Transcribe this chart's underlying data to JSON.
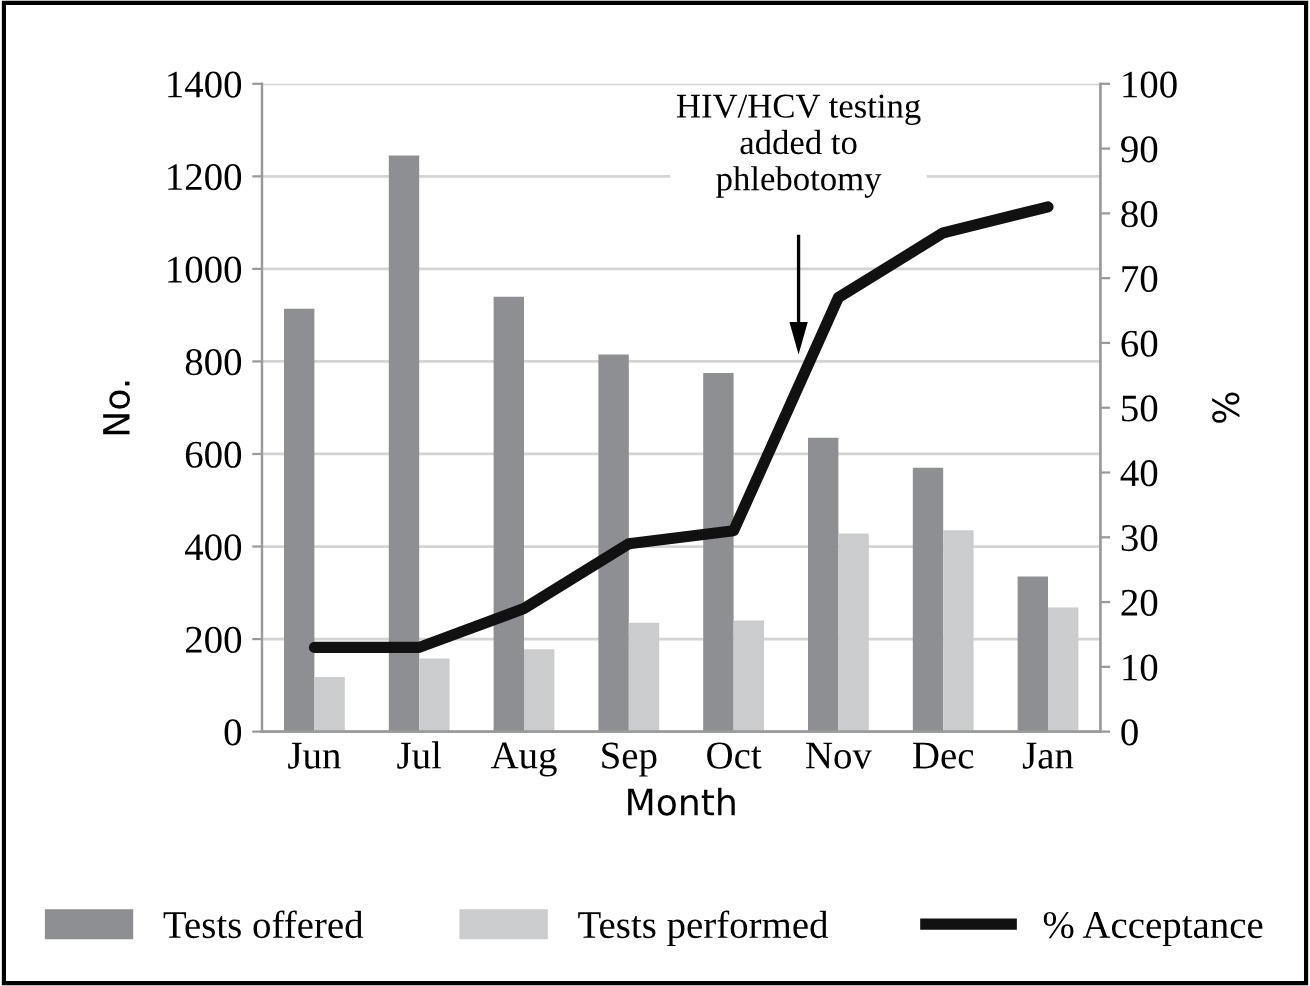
{
  "chart_data": {
    "type": "bar",
    "xlabel": "Month",
    "ylabel": "No.",
    "y2label": "%",
    "categories": [
      "Jun",
      "Jul",
      "Aug",
      "Sep",
      "Oct",
      "Nov",
      "Dec",
      "Jan"
    ],
    "series": [
      {
        "name": "Tests offered",
        "color": "#8e8f92",
        "values": [
          914,
          1245,
          940,
          815,
          775,
          635,
          570,
          335
        ]
      },
      {
        "name": "Tests performed",
        "color": "#cbcccd",
        "values": [
          118,
          158,
          178,
          235,
          240,
          428,
          435,
          268
        ]
      },
      {
        "name": "% Acceptance",
        "type": "line",
        "axis": "y2",
        "color": "#111111",
        "values": [
          13,
          13,
          19,
          29,
          31,
          67,
          77,
          81
        ]
      }
    ],
    "ylim": [
      0,
      1400
    ],
    "yticks": [
      0,
      200,
      400,
      600,
      800,
      1000,
      1200,
      1400
    ],
    "y2lim": [
      0,
      100
    ],
    "y2ticks": [
      0,
      10,
      20,
      30,
      40,
      50,
      60,
      70,
      80,
      90,
      100
    ],
    "grid": "y",
    "legend": "bottom",
    "marker": "none",
    "line_style": "solid",
    "annotations": [
      "HIV/HCV testing\nadded to\nphlebotomy"
    ]
  }
}
